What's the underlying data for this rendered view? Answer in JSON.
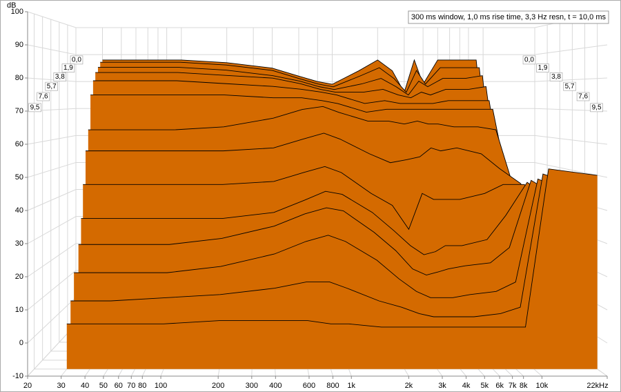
{
  "chart_data": {
    "type": "waterfall",
    "legend_text": "300 ms window, 1,0 ms rise time,  3,3 Hz resn, t = 10,0 ms",
    "y_label": "dB",
    "log_x": true,
    "grid": true,
    "color": "#d46a00",
    "xlim": [
      20,
      22000
    ],
    "xticks": [
      20,
      30,
      40,
      50,
      60,
      70,
      80,
      100,
      200,
      300,
      400,
      600,
      800,
      {
        "value": 1000,
        "label": "1k"
      },
      {
        "value": 2000,
        "label": "2k"
      },
      {
        "value": 3000,
        "label": "3k"
      },
      {
        "value": 4000,
        "label": "4k"
      },
      {
        "value": 5000,
        "label": "5k"
      },
      {
        "value": 6000,
        "label": "6k"
      },
      {
        "value": 7000,
        "label": "7k"
      },
      {
        "value": 8000,
        "label": "8k"
      },
      {
        "value": 10000,
        "label": "10k"
      },
      {
        "value": 22000,
        "label": "22kHz"
      }
    ],
    "ylim": [
      -10,
      100
    ],
    "yticks": [
      -10,
      0,
      10,
      20,
      30,
      40,
      50,
      60,
      70,
      80,
      90,
      100
    ],
    "zlim": [
      0,
      11
    ],
    "zticks": [
      {
        "value": 0,
        "label": "0,0"
      },
      {
        "value": 1.9,
        "label": "1,9"
      },
      {
        "value": 3.8,
        "label": "3,8"
      },
      {
        "value": 5.7,
        "label": "5,7"
      },
      {
        "value": 7.6,
        "label": "7,6"
      },
      {
        "value": 9.5,
        "label": "9,5"
      }
    ],
    "x": [
      30,
      50,
      100,
      200,
      400,
      600,
      800,
      1000,
      1500,
      2000,
      2500,
      3000,
      3500,
      4000,
      5000,
      7000,
      9000,
      12000,
      22000
    ],
    "slices": [
      {
        "t": 0.0,
        "values": [
          88,
          88,
          88,
          87,
          85,
          82,
          80,
          79,
          84,
          88,
          84,
          76,
          88,
          79,
          88,
          88,
          88,
          20,
          10
        ]
      },
      {
        "t": 0.6,
        "values": [
          87,
          87,
          87,
          86,
          84,
          81,
          79,
          78,
          82,
          85,
          81,
          76,
          84,
          79,
          85,
          85,
          85,
          20,
          12
        ]
      },
      {
        "t": 1.2,
        "values": [
          85,
          85,
          85,
          84,
          82,
          80,
          78,
          77,
          79,
          81,
          78,
          75,
          80,
          78,
          81,
          81,
          82,
          22,
          14
        ]
      },
      {
        "t": 1.9,
        "values": [
          83,
          83,
          83,
          82,
          81,
          79,
          77,
          76,
          76,
          77,
          75,
          74,
          76,
          75,
          77,
          77,
          78,
          25,
          16
        ]
      },
      {
        "t": 2.5,
        "values": [
          80,
          80,
          80,
          79,
          78,
          77,
          76,
          75,
          72,
          73,
          72,
          72,
          72,
          72,
          73,
          73,
          73,
          30,
          18
        ]
      },
      {
        "t": 3.2,
        "values": [
          75,
          75,
          75,
          75,
          74,
          74,
          73,
          72,
          69,
          70,
          70,
          70,
          70,
          70,
          70,
          70,
          70,
          35,
          20
        ]
      },
      {
        "t": 3.8,
        "values": [
          63,
          63,
          63,
          64,
          67,
          70,
          71,
          69,
          66,
          66,
          65,
          66,
          65,
          65,
          64,
          64,
          63,
          40,
          22
        ]
      },
      {
        "t": 4.5,
        "values": [
          56,
          56,
          56,
          56,
          57,
          60,
          62,
          60,
          55,
          52,
          53,
          54,
          57,
          56,
          57,
          55,
          50,
          45,
          25
        ]
      },
      {
        "t": 5.2,
        "values": [
          45,
          45,
          45,
          45,
          46,
          49,
          51,
          49,
          42,
          38,
          30,
          42,
          40,
          40,
          40,
          42,
          45,
          45,
          30
        ]
      },
      {
        "t": 5.7,
        "values": [
          34,
          34,
          34,
          34,
          36,
          40,
          43,
          42,
          36,
          30,
          25,
          22,
          23,
          25,
          25,
          27,
          35,
          46,
          35
        ]
      },
      {
        "t": 6.4,
        "values": [
          26,
          26,
          26,
          28,
          32,
          36,
          38,
          37,
          30,
          24,
          18,
          16,
          17,
          18,
          19,
          20,
          25,
          47,
          38
        ]
      },
      {
        "t": 7.6,
        "values": [
          18,
          18,
          18,
          20,
          24,
          28,
          30,
          28,
          22,
          16,
          12,
          10,
          10,
          10,
          11,
          12,
          15,
          48,
          42
        ]
      },
      {
        "t": 8.5,
        "values": [
          10,
          10,
          11,
          12,
          14,
          16,
          16,
          14,
          10,
          8,
          6,
          5,
          5,
          5,
          5,
          6,
          8,
          50,
          45
        ]
      },
      {
        "t": 9.5,
        "values": [
          4,
          4,
          4,
          5,
          5,
          5,
          4,
          4,
          3,
          3,
          3,
          3,
          3,
          3,
          3,
          3,
          3,
          52,
          50
        ]
      }
    ]
  }
}
